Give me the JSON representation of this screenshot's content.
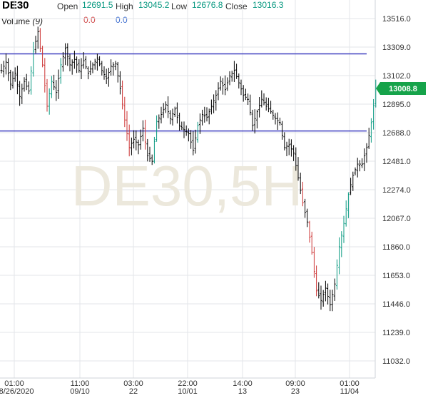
{
  "header": {
    "symbol": "DE30",
    "open_label": "Open",
    "open_value": "12691.5",
    "high_label": "High",
    "high_value": "13045.2",
    "low_label": "Low",
    "low_value": "12676.8",
    "close_label": "Close",
    "close_value": "13016.3",
    "volume_label": "Volume",
    "volume_param": "(9)",
    "volume_value_1": "0.0",
    "volume_value_2": "0.0"
  },
  "watermark": "DE30,5H",
  "colors": {
    "up": "#089981",
    "down": "#cc3333",
    "candle": "#000000",
    "hline": "#4040c0",
    "grid": "#e3e6ea",
    "price_tag": "#16a34a"
  },
  "chart_data": {
    "type": "candlestick",
    "title": "DE30",
    "ylim": [
      10900,
      13600
    ],
    "yticks": [
      "13516.0",
      "13309.0",
      "13102.0",
      "12895.0",
      "12688.0",
      "12481.0",
      "12274.0",
      "12067.0",
      "11860.0",
      "11653.0",
      "11446.0",
      "11239.0",
      "11032.0"
    ],
    "xticks": [
      {
        "time": "01:00",
        "date": "08/26/2020"
      },
      {
        "time": "11:00",
        "date": "09/10"
      },
      {
        "time": "03:00",
        "date": "22"
      },
      {
        "time": "22:00",
        "date": "10/01"
      },
      {
        "time": "14:00",
        "date": "13"
      },
      {
        "time": "09:00",
        "date": "23"
      },
      {
        "time": "01:00",
        "date": "11/04"
      }
    ],
    "horizontal_lines": [
      13260,
      12700
    ],
    "last_price": "13008.8",
    "path": [
      [
        0,
        13140
      ],
      [
        2,
        13200
      ],
      [
        4,
        13040
      ],
      [
        6,
        13120
      ],
      [
        8,
        12950
      ],
      [
        10,
        13060
      ],
      [
        12,
        12990
      ],
      [
        14,
        13280
      ],
      [
        16,
        13420
      ],
      [
        18,
        13180
      ],
      [
        20,
        12880
      ],
      [
        22,
        13060
      ],
      [
        24,
        12980
      ],
      [
        26,
        13180
      ],
      [
        28,
        13300
      ],
      [
        30,
        13180
      ],
      [
        32,
        13220
      ],
      [
        34,
        13140
      ],
      [
        36,
        13210
      ],
      [
        38,
        13120
      ],
      [
        40,
        13180
      ],
      [
        42,
        13230
      ],
      [
        44,
        13140
      ],
      [
        46,
        13080
      ],
      [
        48,
        13170
      ],
      [
        50,
        13190
      ],
      [
        52,
        13010
      ],
      [
        54,
        12780
      ],
      [
        56,
        12580
      ],
      [
        58,
        12640
      ],
      [
        60,
        12600
      ],
      [
        62,
        12720
      ],
      [
        64,
        12520
      ],
      [
        66,
        12480
      ],
      [
        68,
        12770
      ],
      [
        70,
        12820
      ],
      [
        72,
        12890
      ],
      [
        74,
        12790
      ],
      [
        76,
        12860
      ],
      [
        78,
        12740
      ],
      [
        80,
        12710
      ],
      [
        82,
        12680
      ],
      [
        84,
        12560
      ],
      [
        86,
        12740
      ],
      [
        88,
        12820
      ],
      [
        90,
        12800
      ],
      [
        92,
        12880
      ],
      [
        94,
        12960
      ],
      [
        96,
        13060
      ],
      [
        98,
        13000
      ],
      [
        100,
        13100
      ],
      [
        102,
        13140
      ],
      [
        104,
        13050
      ],
      [
        106,
        12960
      ],
      [
        108,
        12930
      ],
      [
        110,
        12740
      ],
      [
        112,
        12840
      ],
      [
        114,
        12930
      ],
      [
        116,
        12880
      ],
      [
        118,
        12840
      ],
      [
        120,
        12790
      ],
      [
        122,
        12760
      ],
      [
        124,
        12580
      ],
      [
        126,
        12600
      ],
      [
        128,
        12540
      ],
      [
        130,
        12360
      ],
      [
        132,
        12180
      ],
      [
        134,
        12040
      ],
      [
        136,
        11820
      ],
      [
        138,
        11540
      ],
      [
        140,
        11470
      ],
      [
        142,
        11560
      ],
      [
        144,
        11440
      ],
      [
        146,
        11590
      ],
      [
        148,
        11860
      ],
      [
        150,
        12030
      ],
      [
        152,
        12240
      ],
      [
        154,
        12380
      ],
      [
        156,
        12460
      ],
      [
        158,
        12460
      ],
      [
        160,
        12580
      ],
      [
        162,
        12760
      ],
      [
        164,
        13008.8
      ]
    ]
  }
}
